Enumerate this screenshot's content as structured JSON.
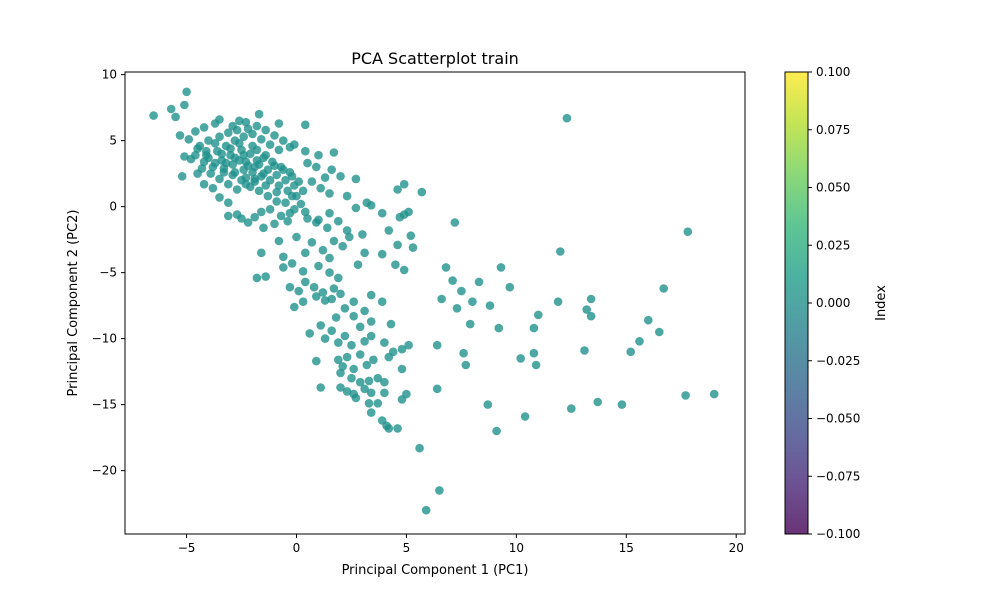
{
  "chart_data": {
    "type": "scatter",
    "title": "PCA Scatterplot train",
    "xlabel": "Principal Component 1 (PC1)",
    "ylabel": "Principal Component 2 (PC2)",
    "xlim": [
      -7.8,
      20.4
    ],
    "ylim": [
      -24.8,
      10.2
    ],
    "xticks": [
      -5,
      0,
      5,
      10,
      15,
      20
    ],
    "yticks": [
      -20,
      -15,
      -10,
      -5,
      0,
      5,
      10
    ],
    "grid": false,
    "point_color": "#21918c",
    "point_opacity": 0.8,
    "colorbar": {
      "label": "Index",
      "min": -0.1,
      "max": 0.1,
      "ticks": [
        "0.100",
        "0.075",
        "0.050",
        "0.025",
        "0.000",
        "−0.025",
        "−0.050",
        "−0.075",
        "−0.100"
      ],
      "colormap": [
        "#440154",
        "#482878",
        "#3e4989",
        "#31688e",
        "#26828e",
        "#1f9e89",
        "#35b779",
        "#6ece58",
        "#b5de2b",
        "#fde725"
      ]
    },
    "points": [
      [
        -6.5,
        6.9
      ],
      [
        -5.7,
        7.4
      ],
      [
        -5.5,
        6.8
      ],
      [
        -5.1,
        7.7
      ],
      [
        -5.0,
        8.7
      ],
      [
        -5.3,
        5.4
      ],
      [
        -4.9,
        5.1
      ],
      [
        -4.6,
        5.7
      ],
      [
        -4.2,
        6.0
      ],
      [
        -3.7,
        6.3
      ],
      [
        -3.5,
        6.6
      ],
      [
        -4.5,
        4.4
      ],
      [
        -4.1,
        3.9
      ],
      [
        -4.8,
        3.6
      ],
      [
        -5.1,
        3.8
      ],
      [
        -4.5,
        2.5
      ],
      [
        -5.2,
        2.3
      ],
      [
        -4.2,
        1.7
      ],
      [
        -3.8,
        1.4
      ],
      [
        -3.5,
        0.7
      ],
      [
        -3.1,
        0.3
      ],
      [
        -2.7,
        -0.6
      ],
      [
        -2.2,
        -1.2
      ],
      [
        -2.9,
        6.1
      ],
      [
        -2.6,
        6.5
      ],
      [
        -2.3,
        6.4
      ],
      [
        -1.7,
        7.0
      ],
      [
        -0.8,
        6.3
      ],
      [
        0.4,
        6.2
      ],
      [
        -0.1,
        4.7
      ],
      [
        0.4,
        4.2
      ],
      [
        1.0,
        3.9
      ],
      [
        1.7,
        4.1
      ],
      [
        0.5,
        3.3
      ],
      [
        0.9,
        3.0
      ],
      [
        1.6,
        2.8
      ],
      [
        2.0,
        2.3
      ],
      [
        2.7,
        2.1
      ],
      [
        1.3,
        2.2
      ],
      [
        0.7,
        1.9
      ],
      [
        1.1,
        1.4
      ],
      [
        1.5,
        1.0
      ],
      [
        2.3,
        0.8
      ],
      [
        3.2,
        0.3
      ],
      [
        4.6,
        1.3
      ],
      [
        4.9,
        1.7
      ],
      [
        5.7,
        1.1
      ],
      [
        2.7,
        -0.1
      ],
      [
        3.9,
        -0.5
      ],
      [
        4.9,
        -0.6
      ],
      [
        4.7,
        -0.8
      ],
      [
        5.1,
        -0.4
      ],
      [
        3.4,
        0.1
      ],
      [
        1.5,
        -0.5
      ],
      [
        1.0,
        -1.0
      ],
      [
        1.9,
        -1.1
      ],
      [
        1.4,
        -1.6
      ],
      [
        2.3,
        -1.8
      ],
      [
        3.0,
        -2.1
      ],
      [
        4.2,
        -1.8
      ],
      [
        5.2,
        -2.2
      ],
      [
        0.9,
        -1.2
      ],
      [
        0.4,
        -0.4
      ],
      [
        -0.1,
        -0.2
      ],
      [
        -0.7,
        -0.7
      ],
      [
        -1.2,
        -0.2
      ],
      [
        -1.6,
        -0.4
      ],
      [
        -1.9,
        -0.8
      ],
      [
        -2.5,
        -0.9
      ],
      [
        -3.1,
        -0.7
      ],
      [
        -0.5,
        0.3
      ],
      [
        -0.2,
        0.8
      ],
      [
        -0.9,
        1.1
      ],
      [
        -1.4,
        1.6
      ],
      [
        -1.9,
        1.9
      ],
      [
        -2.3,
        2.2
      ],
      [
        -2.8,
        2.6
      ],
      [
        -3.3,
        2.9
      ],
      [
        -3.7,
        3.3
      ],
      [
        -4.0,
        3.7
      ],
      [
        -3.6,
        4.2
      ],
      [
        -3.2,
        4.6
      ],
      [
        -2.8,
        5.0
      ],
      [
        -2.4,
        5.3
      ],
      [
        -2.0,
        5.5
      ],
      [
        -1.6,
        5.1
      ],
      [
        -1.2,
        4.7
      ],
      [
        -0.8,
        4.3
      ],
      [
        -1.4,
        3.9
      ],
      [
        -1.8,
        3.5
      ],
      [
        -2.2,
        3.1
      ],
      [
        -2.6,
        3.5
      ],
      [
        -3.0,
        3.9
      ],
      [
        -2.5,
        4.3
      ],
      [
        -2.1,
        4.0
      ],
      [
        -1.7,
        3.2
      ],
      [
        -1.3,
        2.8
      ],
      [
        -0.9,
        2.4
      ],
      [
        -0.5,
        2.0
      ],
      [
        -0.1,
        1.6
      ],
      [
        0.3,
        1.2
      ],
      [
        -0.3,
        2.6
      ],
      [
        -0.7,
        3.0
      ],
      [
        -1.1,
        3.4
      ],
      [
        -1.5,
        2.5
      ],
      [
        -1.9,
        2.1
      ],
      [
        -2.3,
        1.7
      ],
      [
        -2.7,
        1.3
      ],
      [
        -3.1,
        1.7
      ],
      [
        -3.5,
        2.1
      ],
      [
        -3.9,
        2.5
      ],
      [
        -4.3,
        2.9
      ],
      [
        -3.4,
        3.5
      ],
      [
        -2.9,
        3.2
      ],
      [
        -2.4,
        2.8
      ],
      [
        -2.0,
        2.6
      ],
      [
        -1.6,
        2.3
      ],
      [
        -1.2,
        2.0
      ],
      [
        -0.8,
        1.6
      ],
      [
        -0.4,
        1.2
      ],
      [
        0.0,
        0.8
      ],
      [
        0.2,
        0.2
      ],
      [
        -0.3,
        -0.5
      ],
      [
        -0.9,
        0.4
      ],
      [
        -1.3,
        0.8
      ],
      [
        -1.7,
        1.2
      ],
      [
        -2.1,
        1.5
      ],
      [
        -2.5,
        2.0
      ],
      [
        -2.9,
        2.4
      ],
      [
        -3.3,
        2.6
      ],
      [
        -3.8,
        3.0
      ],
      [
        -4.2,
        3.4
      ],
      [
        -4.6,
        3.9
      ],
      [
        -4.4,
        4.6
      ],
      [
        -4.0,
        5.0
      ],
      [
        -3.5,
        5.3
      ],
      [
        -3.1,
        5.6
      ],
      [
        -2.7,
        5.8
      ],
      [
        -2.2,
        5.9
      ],
      [
        -1.8,
        6.1
      ],
      [
        -1.4,
        5.8
      ],
      [
        -1.0,
        5.4
      ],
      [
        -0.6,
        5.0
      ],
      [
        -0.3,
        4.5
      ],
      [
        -2.0,
        4.6
      ],
      [
        -2.6,
        4.8
      ],
      [
        -3.0,
        4.4
      ],
      [
        -3.4,
        4.0
      ],
      [
        -2.8,
        3.7
      ],
      [
        -2.3,
        3.4
      ],
      [
        -1.9,
        3.0
      ],
      [
        -1.5,
        3.7
      ],
      [
        -1.0,
        3.1
      ],
      [
        -0.6,
        2.8
      ],
      [
        -0.2,
        2.3
      ],
      [
        0.1,
        1.9
      ],
      [
        -3.7,
        4.8
      ],
      [
        -4.1,
        4.2
      ],
      [
        -2.4,
        3.9
      ],
      [
        -3.2,
        3.3
      ],
      [
        -1.8,
        4.3
      ],
      [
        -1.0,
        -1.3
      ],
      [
        -1.5,
        -1.6
      ],
      [
        -0.4,
        -1.1
      ],
      [
        0.5,
        -0.9
      ],
      [
        0.0,
        -2.3
      ],
      [
        -0.8,
        -2.6
      ],
      [
        -1.6,
        -3.5
      ],
      [
        -0.6,
        -3.8
      ],
      [
        0.4,
        -3.5
      ],
      [
        1.2,
        -3.3
      ],
      [
        0.7,
        -2.7
      ],
      [
        1.7,
        -2.6
      ],
      [
        1.5,
        -3.9
      ],
      [
        2.1,
        -3.0
      ],
      [
        3.1,
        -3.5
      ],
      [
        2.4,
        -2.3
      ],
      [
        -0.2,
        -4.3
      ],
      [
        0.3,
        -4.9
      ],
      [
        1.0,
        -4.5
      ],
      [
        1.5,
        -5.0
      ],
      [
        1.9,
        -5.4
      ],
      [
        2.8,
        -4.4
      ],
      [
        3.9,
        -3.6
      ],
      [
        4.5,
        -4.4
      ],
      [
        4.9,
        -4.8
      ],
      [
        5.3,
        -3.1
      ],
      [
        4.6,
        -2.9
      ],
      [
        -1.8,
        -5.4
      ],
      [
        -1.4,
        -5.3
      ],
      [
        -0.6,
        -4.6
      ],
      [
        0.4,
        -5.7
      ],
      [
        0.8,
        -6.1
      ],
      [
        1.2,
        -6.5
      ],
      [
        1.7,
        -6.2
      ],
      [
        2.0,
        -6.6
      ],
      [
        -0.3,
        -6.1
      ],
      [
        0.1,
        -6.4
      ],
      [
        0.3,
        -7.2
      ],
      [
        -0.1,
        -7.6
      ],
      [
        0.9,
        -6.8
      ],
      [
        1.3,
        -7.1
      ],
      [
        1.6,
        -7.0
      ],
      [
        2.6,
        -7.2
      ],
      [
        2.2,
        -7.7
      ],
      [
        3.1,
        -7.9
      ],
      [
        3.4,
        -6.7
      ],
      [
        3.9,
        -7.2
      ],
      [
        4.3,
        -8.9
      ],
      [
        3.4,
        -8.7
      ],
      [
        2.6,
        -8.3
      ],
      [
        1.8,
        -8.4
      ],
      [
        1.1,
        -9.0
      ],
      [
        1.6,
        -9.4
      ],
      [
        2.2,
        -9.8
      ],
      [
        2.9,
        -9.1
      ],
      [
        0.6,
        -9.6
      ],
      [
        1.3,
        -10.0
      ],
      [
        1.9,
        -10.3
      ],
      [
        2.5,
        -10.5
      ],
      [
        3.1,
        -10.2
      ],
      [
        3.4,
        -9.8
      ],
      [
        4.0,
        -10.3
      ],
      [
        4.4,
        -11.0
      ],
      [
        4.8,
        -10.8
      ],
      [
        5.1,
        -10.5
      ],
      [
        4.2,
        -11.4
      ],
      [
        3.5,
        -11.6
      ],
      [
        2.9,
        -11.2
      ],
      [
        2.3,
        -11.4
      ],
      [
        1.9,
        -11.6
      ],
      [
        2.1,
        -12.1
      ],
      [
        2.6,
        -12.3
      ],
      [
        3.2,
        -12.0
      ],
      [
        0.9,
        -11.7
      ],
      [
        2.0,
        -12.6
      ],
      [
        2.5,
        -13.0
      ],
      [
        2.9,
        -13.3
      ],
      [
        3.3,
        -13.2
      ],
      [
        3.7,
        -13.0
      ],
      [
        4.0,
        -13.3
      ],
      [
        3.1,
        -13.8
      ],
      [
        2.6,
        -14.2
      ],
      [
        2.0,
        -13.7
      ],
      [
        1.1,
        -13.7
      ],
      [
        3.4,
        -14.1
      ],
      [
        4.0,
        -14.1
      ],
      [
        4.8,
        -12.3
      ],
      [
        3.7,
        -14.9
      ],
      [
        3.3,
        -14.9
      ],
      [
        3.4,
        -15.6
      ],
      [
        4.8,
        -14.6
      ],
      [
        5.0,
        -14.2
      ],
      [
        3.9,
        -16.2
      ],
      [
        4.1,
        -16.6
      ],
      [
        4.2,
        -16.8
      ],
      [
        4.6,
        -16.8
      ],
      [
        2.7,
        -14.5
      ],
      [
        2.3,
        -14.0
      ],
      [
        5.6,
        -18.3
      ],
      [
        6.5,
        -21.5
      ],
      [
        5.9,
        -23.0
      ],
      [
        6.4,
        -13.8
      ],
      [
        6.4,
        -10.5
      ],
      [
        7.6,
        -11.1
      ],
      [
        7.7,
        -12.0
      ],
      [
        6.6,
        -7.0
      ],
      [
        7.1,
        -5.6
      ],
      [
        7.3,
        -7.7
      ],
      [
        7.5,
        -6.4
      ],
      [
        6.8,
        -4.6
      ],
      [
        8.0,
        -7.2
      ],
      [
        7.9,
        -8.9
      ],
      [
        8.3,
        -5.7
      ],
      [
        8.8,
        -7.5
      ],
      [
        9.2,
        -9.2
      ],
      [
        9.3,
        -4.6
      ],
      [
        9.7,
        -6.1
      ],
      [
        8.7,
        -15.0
      ],
      [
        9.1,
        -17.0
      ],
      [
        10.2,
        -11.5
      ],
      [
        10.4,
        -15.9
      ],
      [
        10.8,
        -9.2
      ],
      [
        10.8,
        -11.1
      ],
      [
        10.9,
        -12.0
      ],
      [
        11.0,
        -8.2
      ],
      [
        11.9,
        -7.2
      ],
      [
        12.0,
        -3.4
      ],
      [
        7.2,
        -1.2
      ],
      [
        12.3,
        6.7
      ],
      [
        12.5,
        -15.3
      ],
      [
        13.1,
        -10.9
      ],
      [
        13.2,
        -7.8
      ],
      [
        13.4,
        -7.0
      ],
      [
        13.4,
        -8.3
      ],
      [
        13.7,
        -14.8
      ],
      [
        14.8,
        -15.0
      ],
      [
        15.2,
        -11.0
      ],
      [
        15.6,
        -10.2
      ],
      [
        16.0,
        -8.6
      ],
      [
        16.5,
        -9.5
      ],
      [
        16.7,
        -6.2
      ],
      [
        17.7,
        -14.3
      ],
      [
        17.8,
        -1.9
      ],
      [
        19.0,
        -14.2
      ]
    ]
  }
}
